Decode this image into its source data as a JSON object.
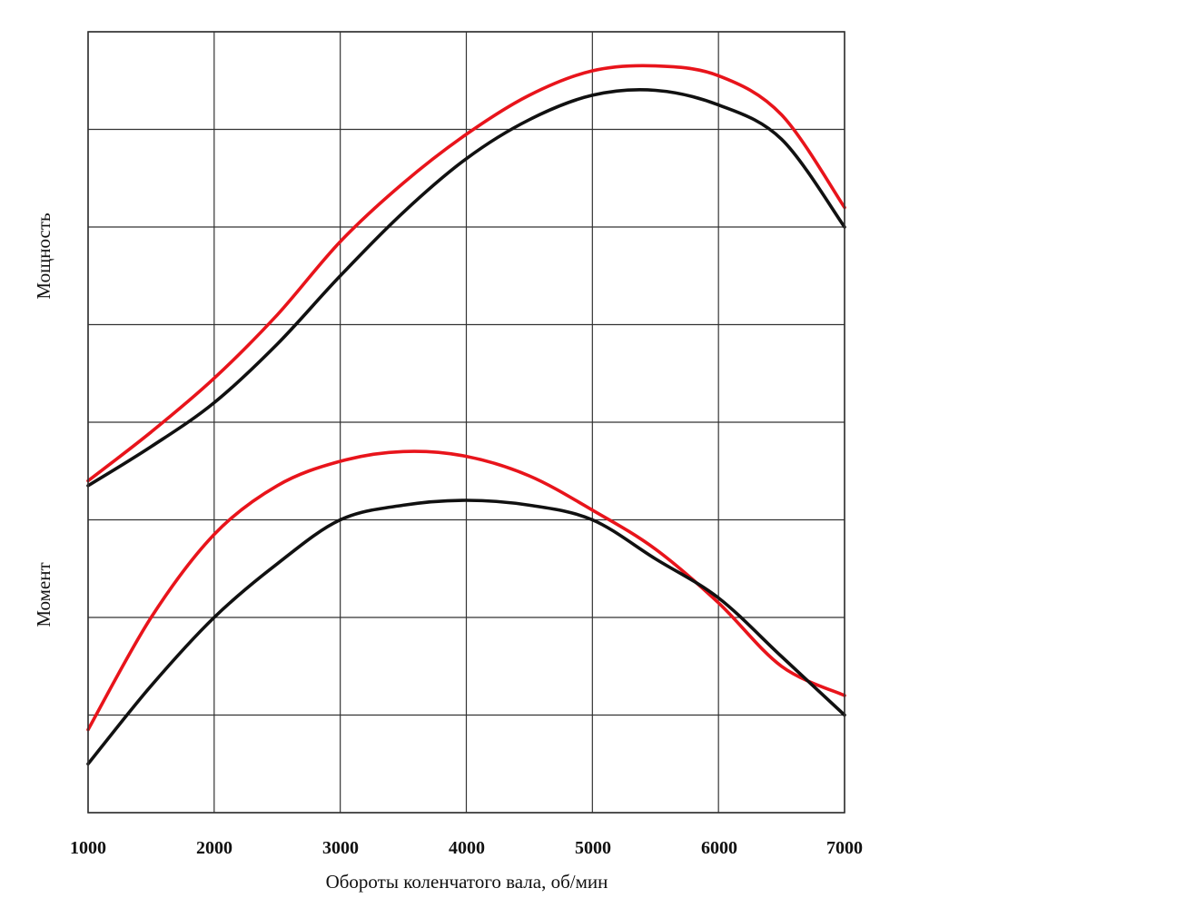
{
  "chart_data": {
    "type": "line",
    "title": "",
    "xlabel": "Обороты коленчатого вала, об/мин",
    "ylabel_top": "Мощность",
    "ylabel_bottom": "Момент",
    "xlim": [
      1000,
      7000
    ],
    "ylim": [
      0,
      8
    ],
    "grid": true,
    "x_ticks": [
      "1000",
      "2000",
      "3000",
      "4000",
      "5000",
      "6000",
      "7000"
    ],
    "colors": {
      "red": "#e8141b",
      "black": "#111111",
      "grid": "#333333"
    },
    "series": [
      {
        "name": "power-red",
        "group": "power",
        "color": "red",
        "x": [
          1000,
          1500,
          2000,
          2500,
          3000,
          3500,
          4000,
          4500,
          5000,
          5500,
          6000,
          6500,
          7000
        ],
        "y": [
          3.4,
          3.9,
          4.45,
          5.1,
          5.85,
          6.45,
          6.95,
          7.35,
          7.6,
          7.65,
          7.55,
          7.15,
          6.2
        ]
      },
      {
        "name": "power-black",
        "group": "power",
        "color": "black",
        "x": [
          1000,
          1500,
          2000,
          2500,
          3000,
          3500,
          4000,
          4500,
          5000,
          5500,
          6000,
          6500,
          7000
        ],
        "y": [
          3.35,
          3.75,
          4.2,
          4.8,
          5.5,
          6.15,
          6.7,
          7.1,
          7.35,
          7.4,
          7.25,
          6.9,
          6.0
        ]
      },
      {
        "name": "torque-red",
        "group": "torque",
        "color": "red",
        "x": [
          1000,
          1500,
          2000,
          2500,
          3000,
          3500,
          4000,
          4500,
          5000,
          5500,
          6000,
          6500,
          7000
        ],
        "y": [
          0.85,
          2.0,
          2.85,
          3.35,
          3.6,
          3.7,
          3.65,
          3.45,
          3.1,
          2.7,
          2.15,
          1.5,
          1.2
        ]
      },
      {
        "name": "torque-black",
        "group": "torque",
        "color": "black",
        "x": [
          1000,
          1500,
          2000,
          2500,
          3000,
          3500,
          4000,
          4500,
          5000,
          5500,
          6000,
          6500,
          7000
        ],
        "y": [
          0.5,
          1.3,
          2.0,
          2.55,
          3.0,
          3.15,
          3.2,
          3.15,
          3.0,
          2.6,
          2.2,
          1.6,
          1.0
        ]
      }
    ]
  }
}
